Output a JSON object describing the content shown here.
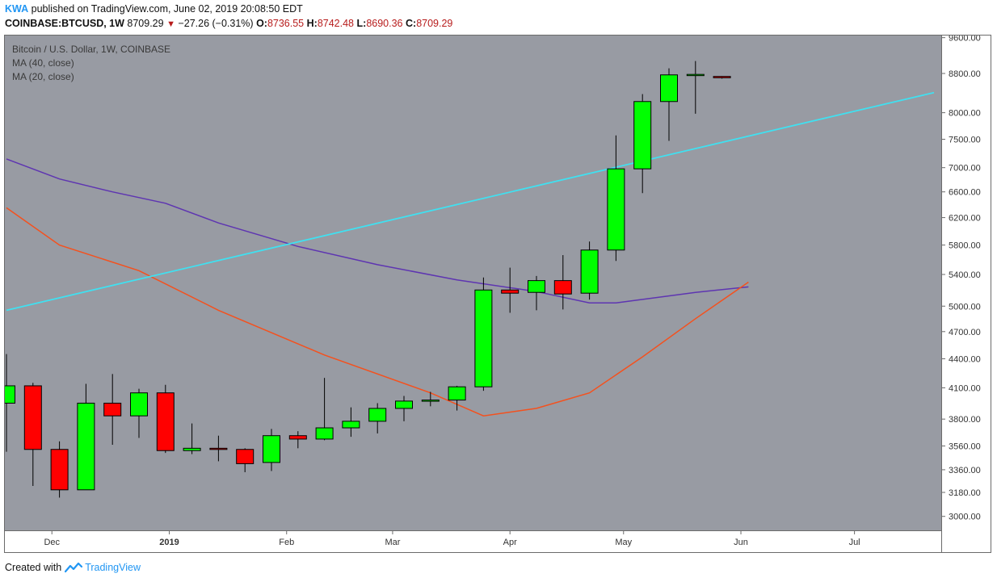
{
  "header": {
    "author": "KWA",
    "published": "published on TradingView.com, June 02, 2019 20:08:50 EDT",
    "symbol": "COINBASE:BTCUSD, 1W",
    "last": "8709.29",
    "change": "−27.26 (−0.31%)",
    "o_label": "O:",
    "o": "8736.55",
    "h_label": "H:",
    "h": "8742.48",
    "l_label": "L:",
    "l": "8690.36",
    "c_label": "C:",
    "c": "8709.29"
  },
  "legend": {
    "title": "Bitcoin / U.S. Dollar, 1W, COINBASE",
    "ma40": "MA (40, close)",
    "ma20": "MA (20, close)"
  },
  "footer": {
    "created": "Created with",
    "brand": "TradingView"
  },
  "colors": {
    "background": "#989ba3",
    "up": "#00ff00",
    "down": "#ff0000",
    "ma40": "#5e35b1",
    "ma20": "#f4511e",
    "trendline": "#40e0f0"
  },
  "chart_data": {
    "type": "candlestick",
    "scale": "log",
    "ylim": [
      2900,
      9650
    ],
    "y_ticks": [
      3000,
      3180,
      3360,
      3560,
      3800,
      4100,
      4400,
      4700,
      5000,
      5400,
      5800,
      6200,
      6600,
      7000,
      7500,
      8000,
      8800,
      9600
    ],
    "x_ticks": [
      {
        "label": "Dec",
        "date": "2018-12-01"
      },
      {
        "label": "2019",
        "date": "2019-01-01",
        "bold": true
      },
      {
        "label": "Feb",
        "date": "2019-02-01"
      },
      {
        "label": "Mar",
        "date": "2019-03-01"
      },
      {
        "label": "Apr",
        "date": "2019-04-01"
      },
      {
        "label": "May",
        "date": "2019-05-01"
      },
      {
        "label": "Jun",
        "date": "2019-06-01"
      },
      {
        "label": "Jul",
        "date": "2019-07-01"
      }
    ],
    "candles": [
      {
        "date": "2018-11-19",
        "o": 3950,
        "h": 4450,
        "l": 3510,
        "c": 4120
      },
      {
        "date": "2018-11-26",
        "o": 4120,
        "h": 4150,
        "l": 3230,
        "c": 3530
      },
      {
        "date": "2018-12-03",
        "o": 3530,
        "h": 3600,
        "l": 3140,
        "c": 3200
      },
      {
        "date": "2018-12-10",
        "o": 3200,
        "h": 4140,
        "l": 3200,
        "c": 3950
      },
      {
        "date": "2018-12-17",
        "o": 3950,
        "h": 4240,
        "l": 3570,
        "c": 3830
      },
      {
        "date": "2018-12-24",
        "o": 3830,
        "h": 4090,
        "l": 3630,
        "c": 4050
      },
      {
        "date": "2018-12-31",
        "o": 4050,
        "h": 4130,
        "l": 3500,
        "c": 3520
      },
      {
        "date": "2019-01-07",
        "o": 3520,
        "h": 3760,
        "l": 3490,
        "c": 3540
      },
      {
        "date": "2019-01-14",
        "o": 3540,
        "h": 3650,
        "l": 3430,
        "c": 3530
      },
      {
        "date": "2019-01-21",
        "o": 3530,
        "h": 3540,
        "l": 3340,
        "c": 3410
      },
      {
        "date": "2019-01-28",
        "o": 3420,
        "h": 3710,
        "l": 3350,
        "c": 3650
      },
      {
        "date": "2019-02-04",
        "o": 3650,
        "h": 3690,
        "l": 3540,
        "c": 3620
      },
      {
        "date": "2019-02-11",
        "o": 3620,
        "h": 4200,
        "l": 3610,
        "c": 3720
      },
      {
        "date": "2019-02-18",
        "o": 3720,
        "h": 3910,
        "l": 3640,
        "c": 3780
      },
      {
        "date": "2019-02-25",
        "o": 3780,
        "h": 3950,
        "l": 3670,
        "c": 3900
      },
      {
        "date": "2019-03-04",
        "o": 3900,
        "h": 4020,
        "l": 3780,
        "c": 3970
      },
      {
        "date": "2019-03-11",
        "o": 3970,
        "h": 4060,
        "l": 3920,
        "c": 3980
      },
      {
        "date": "2019-03-18",
        "o": 3980,
        "h": 4120,
        "l": 3880,
        "c": 4110
      },
      {
        "date": "2019-03-25",
        "o": 4110,
        "h": 5360,
        "l": 4070,
        "c": 5200
      },
      {
        "date": "2019-04-01",
        "o": 5200,
        "h": 5490,
        "l": 4920,
        "c": 5160
      },
      {
        "date": "2019-04-08",
        "o": 5170,
        "h": 5380,
        "l": 4950,
        "c": 5320
      },
      {
        "date": "2019-04-15",
        "o": 5320,
        "h": 5660,
        "l": 4960,
        "c": 5150
      },
      {
        "date": "2019-04-22",
        "o": 5160,
        "h": 5850,
        "l": 5080,
        "c": 5730
      },
      {
        "date": "2019-04-29",
        "o": 5730,
        "h": 7570,
        "l": 5580,
        "c": 6980
      },
      {
        "date": "2019-05-06",
        "o": 6980,
        "h": 8370,
        "l": 6580,
        "c": 8220
      },
      {
        "date": "2019-05-13",
        "o": 8220,
        "h": 8910,
        "l": 7470,
        "c": 8770
      },
      {
        "date": "2019-05-20",
        "o": 8760,
        "h": 9070,
        "l": 7980,
        "c": 8780
      },
      {
        "date": "2019-05-27",
        "o": 8736.55,
        "h": 8742.48,
        "l": 8690.36,
        "c": 8709.29
      }
    ],
    "series": [
      {
        "name": "MA (40, close)",
        "color": "#5e35b1",
        "points": [
          [
            "2018-11-19",
            7150
          ],
          [
            "2018-12-03",
            6810
          ],
          [
            "2018-12-17",
            6600
          ],
          [
            "2018-12-31",
            6420
          ],
          [
            "2019-01-14",
            6120
          ],
          [
            "2019-02-04",
            5780
          ],
          [
            "2019-02-25",
            5530
          ],
          [
            "2019-03-18",
            5330
          ],
          [
            "2019-04-08",
            5180
          ],
          [
            "2019-04-22",
            5040
          ],
          [
            "2019-04-29",
            5040
          ],
          [
            "2019-05-20",
            5170
          ],
          [
            "2019-06-03",
            5240
          ]
        ]
      },
      {
        "name": "MA (20, close)",
        "color": "#f4511e",
        "points": [
          [
            "2018-11-19",
            6350
          ],
          [
            "2018-12-03",
            5800
          ],
          [
            "2018-12-24",
            5450
          ],
          [
            "2019-01-14",
            4950
          ],
          [
            "2019-02-11",
            4440
          ],
          [
            "2019-03-11",
            4050
          ],
          [
            "2019-03-25",
            3830
          ],
          [
            "2019-04-08",
            3900
          ],
          [
            "2019-04-22",
            4050
          ],
          [
            "2019-05-06",
            4420
          ],
          [
            "2019-05-20",
            4850
          ],
          [
            "2019-06-03",
            5300
          ]
        ]
      },
      {
        "name": "trend line",
        "color": "#40e0f0",
        "points": [
          [
            "2018-11-19",
            4950
          ],
          [
            "2019-07-22",
            8400
          ]
        ]
      }
    ]
  }
}
